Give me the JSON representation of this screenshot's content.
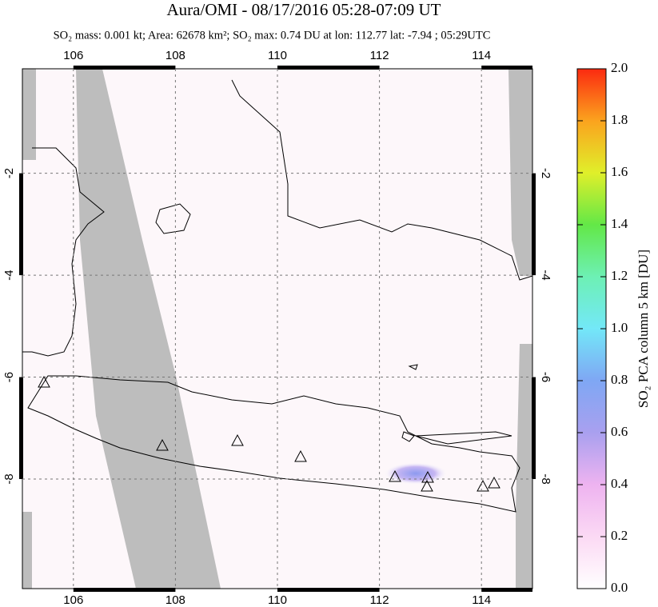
{
  "chart_data": {
    "type": "map",
    "title": "Aura/OMI - 08/17/2016 05:28-07:09 UT",
    "subtitle": "SO₂ mass: 0.001 kt; Area: 62678 km²; SO₂ max: 0.74 DU at lon: 112.77 lat: -7.94 ; 05:29UTC",
    "xlim": [
      105,
      115
    ],
    "ylim": [
      -10.15,
      0.05
    ],
    "xticks": [
      106,
      108,
      110,
      112,
      114
    ],
    "yticks": [
      -2,
      -4,
      -6,
      -8
    ],
    "grid": true,
    "colorbar": {
      "label": "SO₂ PCA column 5 km [DU]",
      "lim": [
        0,
        2
      ],
      "ticks": [
        {
          "value": 0,
          "label": "0.0"
        },
        0.2,
        0.4,
        0.6,
        0.8,
        {
          "value": 1,
          "label": "1.0"
        },
        1.2,
        1.4,
        1.6,
        1.8,
        {
          "value": 2,
          "label": "2.0"
        }
      ]
    }
  }
}
